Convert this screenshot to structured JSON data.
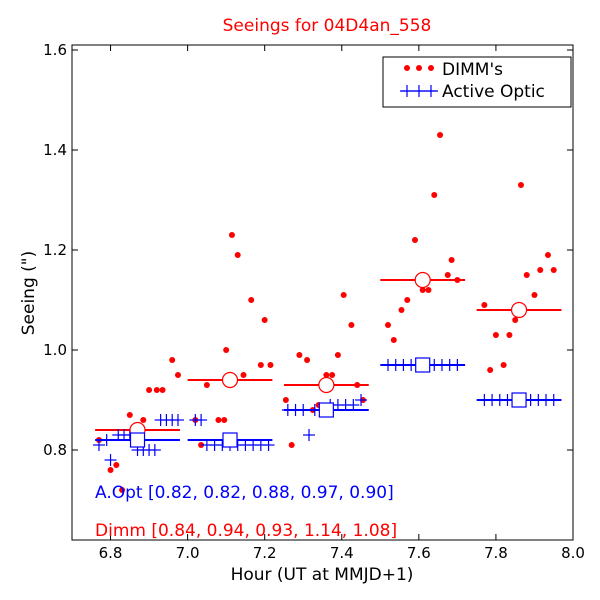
{
  "colors": {
    "dimm": "#ff0000",
    "active_optic": "#0000ff"
  },
  "chart_data": {
    "type": "scatter",
    "title": "Seeings for 04D4an_558",
    "xlabel": "Hour (UT at MMJD+1)",
    "ylabel": "Seeing (\")",
    "xlim": [
      6.7,
      8.0
    ],
    "ylim": [
      0.62,
      1.61
    ],
    "xticks": [
      6.8,
      7.0,
      7.2,
      7.4,
      7.6,
      7.8,
      8.0
    ],
    "xtick_labels": [
      "6.8",
      "7.0",
      "7.2",
      "7.4",
      "7.6",
      "7.8",
      "8.0"
    ],
    "yticks": [
      0.8,
      1.0,
      1.2,
      1.4,
      1.6
    ],
    "ytick_labels": [
      "0.8",
      "1.0",
      "1.2",
      "1.4",
      "1.6"
    ],
    "grid": false,
    "legend": {
      "placement": "top-right",
      "entries": [
        {
          "label": "DIMM's",
          "marker": "dot",
          "color": "#ff0000"
        },
        {
          "label": "Active Optic",
          "marker": "plus",
          "color": "#0000ff"
        }
      ]
    },
    "series": [
      {
        "name": "DIMM's",
        "marker": "dot",
        "color": "#ff0000",
        "points": [
          [
            6.77,
            0.82
          ],
          [
            6.8,
            0.76
          ],
          [
            6.815,
            0.77
          ],
          [
            6.83,
            0.72
          ],
          [
            6.85,
            0.87
          ],
          [
            6.87,
            0.83
          ],
          [
            6.885,
            0.86
          ],
          [
            6.9,
            0.92
          ],
          [
            6.92,
            0.92
          ],
          [
            6.935,
            0.92
          ],
          [
            6.96,
            0.98
          ],
          [
            6.975,
            0.95
          ],
          [
            7.02,
            0.86
          ],
          [
            7.035,
            0.81
          ],
          [
            7.05,
            0.93
          ],
          [
            7.08,
            0.86
          ],
          [
            7.095,
            0.86
          ],
          [
            7.1,
            1.0
          ],
          [
            7.115,
            1.23
          ],
          [
            7.13,
            1.19
          ],
          [
            7.145,
            0.95
          ],
          [
            7.165,
            1.1
          ],
          [
            7.19,
            0.97
          ],
          [
            7.2,
            1.06
          ],
          [
            7.215,
            0.97
          ],
          [
            7.255,
            0.9
          ],
          [
            7.27,
            0.81
          ],
          [
            7.29,
            0.99
          ],
          [
            7.31,
            0.98
          ],
          [
            7.325,
            0.88
          ],
          [
            7.34,
            0.89
          ],
          [
            7.36,
            0.95
          ],
          [
            7.375,
            0.95
          ],
          [
            7.39,
            0.99
          ],
          [
            7.405,
            1.11
          ],
          [
            7.425,
            1.05
          ],
          [
            7.44,
            0.93
          ],
          [
            7.455,
            0.9
          ],
          [
            7.52,
            1.05
          ],
          [
            7.535,
            1.02
          ],
          [
            7.555,
            1.08
          ],
          [
            7.57,
            1.1
          ],
          [
            7.59,
            1.22
          ],
          [
            7.61,
            1.12
          ],
          [
            7.625,
            1.12
          ],
          [
            7.64,
            1.31
          ],
          [
            7.655,
            1.43
          ],
          [
            7.675,
            1.15
          ],
          [
            7.685,
            1.18
          ],
          [
            7.7,
            1.14
          ],
          [
            7.77,
            1.09
          ],
          [
            7.785,
            0.96
          ],
          [
            7.8,
            1.03
          ],
          [
            7.82,
            0.97
          ],
          [
            7.835,
            1.03
          ],
          [
            7.85,
            1.06
          ],
          [
            7.865,
            1.33
          ],
          [
            7.88,
            1.15
          ],
          [
            7.9,
            1.11
          ],
          [
            7.915,
            1.16
          ],
          [
            7.935,
            1.19
          ],
          [
            7.95,
            1.16
          ]
        ],
        "bin_means": [
          {
            "x_start": 6.76,
            "x_end": 6.98,
            "value": 0.84
          },
          {
            "x_start": 7.0,
            "x_end": 7.22,
            "value": 0.94
          },
          {
            "x_start": 7.25,
            "x_end": 7.47,
            "value": 0.93
          },
          {
            "x_start": 7.5,
            "x_end": 7.72,
            "value": 1.14
          },
          {
            "x_start": 7.75,
            "x_end": 7.97,
            "value": 1.08
          }
        ]
      },
      {
        "name": "Active Optic",
        "marker": "plus",
        "color": "#0000ff",
        "points": [
          [
            6.77,
            0.81
          ],
          [
            6.79,
            0.82
          ],
          [
            6.8,
            0.78
          ],
          [
            6.82,
            0.83
          ],
          [
            6.835,
            0.83
          ],
          [
            6.85,
            0.83
          ],
          [
            6.87,
            0.8
          ],
          [
            6.885,
            0.8
          ],
          [
            6.9,
            0.8
          ],
          [
            6.915,
            0.8
          ],
          [
            6.93,
            0.86
          ],
          [
            6.945,
            0.86
          ],
          [
            6.96,
            0.86
          ],
          [
            6.975,
            0.86
          ],
          [
            7.02,
            0.86
          ],
          [
            7.035,
            0.86
          ],
          [
            7.05,
            0.81
          ],
          [
            7.07,
            0.81
          ],
          [
            7.09,
            0.81
          ],
          [
            7.11,
            0.81
          ],
          [
            7.13,
            0.81
          ],
          [
            7.15,
            0.81
          ],
          [
            7.17,
            0.81
          ],
          [
            7.19,
            0.81
          ],
          [
            7.21,
            0.81
          ],
          [
            7.26,
            0.88
          ],
          [
            7.28,
            0.88
          ],
          [
            7.3,
            0.88
          ],
          [
            7.315,
            0.83
          ],
          [
            7.33,
            0.88
          ],
          [
            7.35,
            0.88
          ],
          [
            7.37,
            0.89
          ],
          [
            7.39,
            0.89
          ],
          [
            7.41,
            0.89
          ],
          [
            7.43,
            0.89
          ],
          [
            7.45,
            0.9
          ],
          [
            7.52,
            0.97
          ],
          [
            7.54,
            0.97
          ],
          [
            7.56,
            0.97
          ],
          [
            7.58,
            0.97
          ],
          [
            7.6,
            0.97
          ],
          [
            7.62,
            0.97
          ],
          [
            7.64,
            0.97
          ],
          [
            7.66,
            0.97
          ],
          [
            7.68,
            0.97
          ],
          [
            7.7,
            0.97
          ],
          [
            7.77,
            0.9
          ],
          [
            7.79,
            0.9
          ],
          [
            7.81,
            0.9
          ],
          [
            7.83,
            0.9
          ],
          [
            7.85,
            0.9
          ],
          [
            7.87,
            0.9
          ],
          [
            7.89,
            0.9
          ],
          [
            7.91,
            0.9
          ],
          [
            7.93,
            0.9
          ],
          [
            7.95,
            0.9
          ]
        ],
        "bin_means": [
          {
            "x_start": 6.76,
            "x_end": 6.98,
            "value": 0.82
          },
          {
            "x_start": 7.0,
            "x_end": 7.22,
            "value": 0.82
          },
          {
            "x_start": 7.25,
            "x_end": 7.47,
            "value": 0.88
          },
          {
            "x_start": 7.5,
            "x_end": 7.72,
            "value": 0.97
          },
          {
            "x_start": 7.75,
            "x_end": 7.97,
            "value": 0.9
          }
        ]
      }
    ],
    "annotations": [
      {
        "text": "A.Opt [0.82, 0.82, 0.88, 0.97, 0.90]",
        "color": "#0000ff"
      },
      {
        "text": "Dimm [0.84, 0.94, 0.93, 1.14, 1.08]",
        "color": "#ff0000"
      }
    ]
  }
}
